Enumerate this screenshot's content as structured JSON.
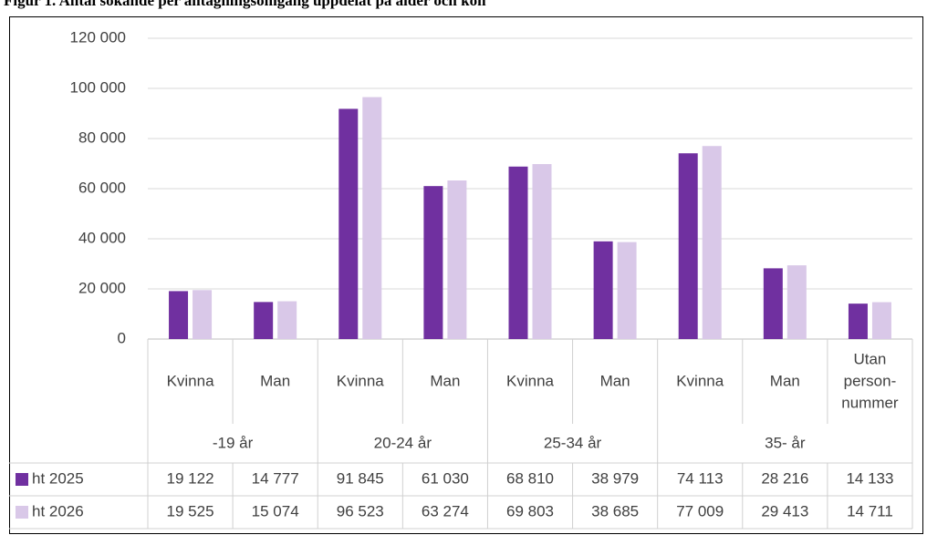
{
  "chart_data": {
    "type": "bar",
    "title": "Figur 1. Antal sökande per antagningsomgång uppdelat på ålder och kön",
    "categories": [
      "Kvinna",
      "Man",
      "Kvinna",
      "Man",
      "Kvinna",
      "Man",
      "Kvinna",
      "Man",
      [
        "Utan",
        "person-",
        "nummer"
      ]
    ],
    "groups": [
      {
        "label": "-19 år",
        "span": 2
      },
      {
        "label": "20-24 år",
        "span": 2
      },
      {
        "label": "25-34 år",
        "span": 2
      },
      {
        "label": "35- år",
        "span": 3
      }
    ],
    "series": [
      {
        "name": "ht 2025",
        "color": "#7030a0",
        "values": [
          19122,
          14777,
          91845,
          61030,
          68810,
          38979,
          74113,
          28216,
          14133
        ],
        "value_labels": [
          "19 122",
          "14 777",
          "91 845",
          "61 030",
          "68 810",
          "38 979",
          "74 113",
          "28 216",
          "14 133"
        ]
      },
      {
        "name": "ht 2026",
        "color": "#d9c8e8",
        "values": [
          19525,
          15074,
          96523,
          63274,
          69803,
          38685,
          77009,
          29413,
          14711
        ],
        "value_labels": [
          "19 525",
          "15 074",
          "96 523",
          "63 274",
          "69 803",
          "38 685",
          "77 009",
          "29 413",
          "14 711"
        ]
      }
    ],
    "ylim": [
      0,
      120000
    ],
    "yticks": [
      0,
      {
        "value": 20000,
        "label": "20 000"
      },
      {
        "value": 40000,
        "label": "40 000"
      },
      {
        "value": 60000,
        "label": "60 000"
      },
      {
        "value": 80000,
        "label": "80 000"
      },
      {
        "value": 100000,
        "label": "100 000"
      },
      {
        "value": 120000,
        "label": "120 000"
      }
    ],
    "grid": true
  }
}
